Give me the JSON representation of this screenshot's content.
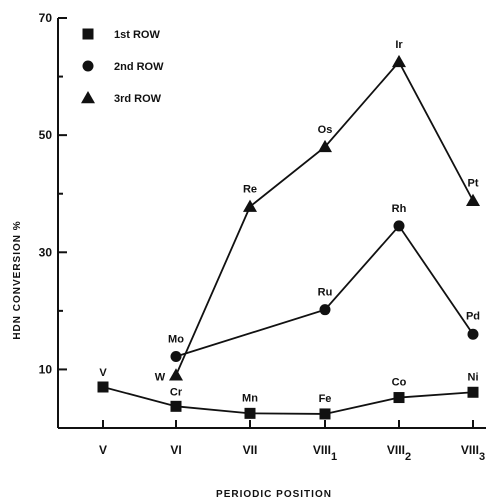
{
  "chart_data": {
    "type": "line",
    "title": "",
    "xlabel": "PERIODIC POSITION",
    "ylabel": "HDN CONVERSION %",
    "ylim": [
      0,
      70
    ],
    "yticks": [
      10,
      30,
      50,
      70
    ],
    "categories": [
      "V",
      "VI",
      "VII",
      "VIII1",
      "VIII2",
      "VIII3"
    ],
    "category_labels": [
      {
        "base": "V",
        "sub": ""
      },
      {
        "base": "VI",
        "sub": ""
      },
      {
        "base": "VII",
        "sub": ""
      },
      {
        "base": "VIII",
        "sub": "1"
      },
      {
        "base": "VIII",
        "sub": "2"
      },
      {
        "base": "VIII",
        "sub": "3"
      }
    ],
    "grid": false,
    "legend_position": "top-left",
    "series": [
      {
        "name": "1st ROW",
        "marker": "square",
        "color": "#111111",
        "points": [
          {
            "category": "V",
            "value": 7,
            "label": "V"
          },
          {
            "category": "VI",
            "value": 3.7,
            "label": "Cr"
          },
          {
            "category": "VII",
            "value": 2.5,
            "label": "Mn"
          },
          {
            "category": "VIII1",
            "value": 2.4,
            "label": "Fe"
          },
          {
            "category": "VIII2",
            "value": 5.2,
            "label": "Co"
          },
          {
            "category": "VIII3",
            "value": 6.1,
            "label": "Ni"
          }
        ]
      },
      {
        "name": "2nd ROW",
        "marker": "circle",
        "color": "#111111",
        "points": [
          {
            "category": "VI",
            "value": 12.2,
            "label": "Mo"
          },
          {
            "category": "VIII1",
            "value": 20.2,
            "label": "Ru"
          },
          {
            "category": "VIII2",
            "value": 34.5,
            "label": "Rh"
          },
          {
            "category": "VIII3",
            "value": 16,
            "label": "Pd"
          }
        ]
      },
      {
        "name": "3rd ROW",
        "marker": "triangle",
        "color": "#111111",
        "points": [
          {
            "category": "VI",
            "value": 9,
            "label": "W"
          },
          {
            "category": "VII",
            "value": 37.8,
            "label": "Re"
          },
          {
            "category": "VIII1",
            "value": 48,
            "label": "Os"
          },
          {
            "category": "VIII2",
            "value": 62.5,
            "label": "Ir"
          },
          {
            "category": "VIII3",
            "value": 38.8,
            "label": "Pt"
          }
        ]
      }
    ]
  }
}
